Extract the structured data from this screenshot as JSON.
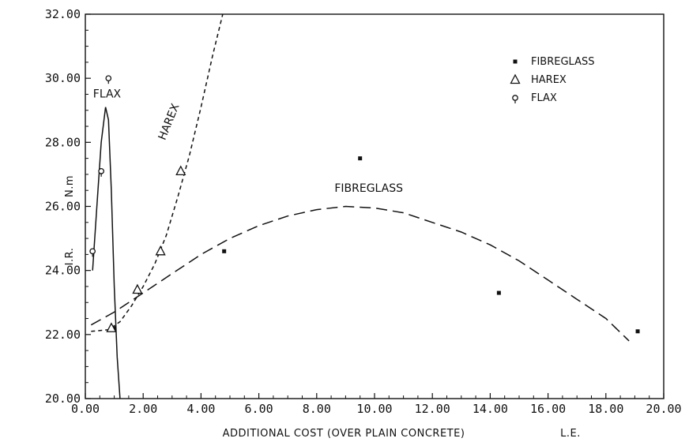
{
  "chart_data": {
    "type": "scatter",
    "title": "",
    "xlabel": "ADDITIONAL COST (OVER PLAIN CONCRETE)",
    "xunit": "L.E.",
    "ylabel": "I.R.",
    "yunit": "N.m",
    "xlim": [
      0,
      20
    ],
    "ylim": [
      20,
      32
    ],
    "x_ticks": [
      "0.00",
      "2.00",
      "4.00",
      "6.00",
      "8.00",
      "10.00",
      "12.00",
      "14.00",
      "16.00",
      "18.00",
      "20.00"
    ],
    "y_ticks": [
      "20.00",
      "22.00",
      "24.00",
      "26.00",
      "28.00",
      "30.00",
      "32.00"
    ],
    "grid": false,
    "legend_position": "top-right",
    "series": [
      {
        "name": "FIBREGLASS",
        "marker": "filled-square",
        "curve_label": "FIBREGLASS",
        "curve_style": "long-dash",
        "points": [
          {
            "x": 1.0,
            "y": 22.2
          },
          {
            "x": 4.8,
            "y": 24.6
          },
          {
            "x": 9.5,
            "y": 27.5
          },
          {
            "x": 14.3,
            "y": 23.3
          },
          {
            "x": 19.1,
            "y": 22.1
          }
        ],
        "curve": [
          {
            "x": 0.2,
            "y": 22.3
          },
          {
            "x": 1.0,
            "y": 22.7
          },
          {
            "x": 2.0,
            "y": 23.3
          },
          {
            "x": 3.0,
            "y": 23.9
          },
          {
            "x": 4.0,
            "y": 24.5
          },
          {
            "x": 5.0,
            "y": 25.0
          },
          {
            "x": 6.0,
            "y": 25.4
          },
          {
            "x": 7.0,
            "y": 25.7
          },
          {
            "x": 8.0,
            "y": 25.9
          },
          {
            "x": 9.0,
            "y": 26.0
          },
          {
            "x": 10.0,
            "y": 25.95
          },
          {
            "x": 11.0,
            "y": 25.8
          },
          {
            "x": 12.0,
            "y": 25.5
          },
          {
            "x": 13.0,
            "y": 25.2
          },
          {
            "x": 14.0,
            "y": 24.8
          },
          {
            "x": 15.0,
            "y": 24.3
          },
          {
            "x": 16.0,
            "y": 23.7
          },
          {
            "x": 17.0,
            "y": 23.1
          },
          {
            "x": 18.0,
            "y": 22.5
          },
          {
            "x": 18.8,
            "y": 21.8
          }
        ]
      },
      {
        "name": "HAREX",
        "marker": "open-triangle",
        "curve_label": "HAREX",
        "curve_style": "short-dash",
        "points": [
          {
            "x": 0.9,
            "y": 22.2
          },
          {
            "x": 1.8,
            "y": 23.4
          },
          {
            "x": 2.6,
            "y": 24.6
          },
          {
            "x": 3.3,
            "y": 27.1
          }
        ],
        "curve": [
          {
            "x": 0.2,
            "y": 22.1
          },
          {
            "x": 0.8,
            "y": 22.15
          },
          {
            "x": 1.2,
            "y": 22.4
          },
          {
            "x": 1.6,
            "y": 22.9
          },
          {
            "x": 2.0,
            "y": 23.5
          },
          {
            "x": 2.4,
            "y": 24.2
          },
          {
            "x": 2.8,
            "y": 25.1
          },
          {
            "x": 3.2,
            "y": 26.3
          },
          {
            "x": 3.6,
            "y": 27.6
          },
          {
            "x": 4.0,
            "y": 29.1
          },
          {
            "x": 4.4,
            "y": 30.7
          },
          {
            "x": 4.75,
            "y": 32.0
          }
        ]
      },
      {
        "name": "FLAX",
        "marker": "open-circle",
        "curve_label": "FLAX",
        "curve_style": "solid",
        "points": [
          {
            "x": 0.25,
            "y": 24.6
          },
          {
            "x": 0.55,
            "y": 27.1
          },
          {
            "x": 0.8,
            "y": 30.0
          }
        ],
        "curve": [
          {
            "x": 0.25,
            "y": 24.0
          },
          {
            "x": 0.4,
            "y": 26.0
          },
          {
            "x": 0.55,
            "y": 28.0
          },
          {
            "x": 0.7,
            "y": 29.1
          },
          {
            "x": 0.8,
            "y": 28.7
          },
          {
            "x": 0.9,
            "y": 26.5
          },
          {
            "x": 1.0,
            "y": 23.5
          },
          {
            "x": 1.1,
            "y": 21.3
          },
          {
            "x": 1.2,
            "y": 20.0
          }
        ]
      }
    ]
  }
}
